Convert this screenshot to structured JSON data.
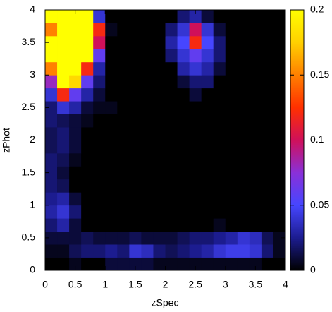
{
  "chart_data": {
    "type": "heatmap",
    "xlabel": "zSpec",
    "ylabel": "zPhot",
    "xbins": [
      0,
      0.2,
      0.4,
      0.6,
      0.8,
      1,
      1.2,
      1.4,
      1.6,
      1.8,
      2,
      2.2,
      2.4,
      2.6,
      2.8,
      3,
      3.2,
      3.4,
      3.6,
      3.8,
      4
    ],
    "ybins": [
      0,
      0.2,
      0.4,
      0.6,
      0.8,
      1,
      1.2,
      1.4,
      1.6,
      1.8,
      2,
      2.2,
      2.4,
      2.6,
      2.8,
      3,
      3.2,
      3.4,
      3.6,
      3.8,
      4
    ],
    "z": [
      [
        0,
        0,
        0.005,
        0,
        0,
        0.01,
        0.01,
        0.01,
        0.01,
        0.005,
        0.005,
        0.005,
        0.005,
        0.005,
        0.005,
        0.005,
        0.005,
        0.005,
        0,
        0
      ],
      [
        0.005,
        0.005,
        0.015,
        0.02,
        0.02,
        0.025,
        0.02,
        0.04,
        0.035,
        0.02,
        0.015,
        0.02,
        0.025,
        0.03,
        0.04,
        0.045,
        0.045,
        0.04,
        0.02,
        0.005
      ],
      [
        0.01,
        0.01,
        0.01,
        0.015,
        0.01,
        0.01,
        0.01,
        0.015,
        0.01,
        0.01,
        0.01,
        0.015,
        0.02,
        0.02,
        0.025,
        0.03,
        0.04,
        0.035,
        0.015,
        0.005
      ],
      [
        0.02,
        0.03,
        0.01,
        0,
        0,
        0,
        0,
        0,
        0,
        0,
        0,
        0,
        0,
        0,
        0.005,
        0,
        0,
        0,
        0,
        0
      ],
      [
        0.03,
        0.04,
        0.02,
        0,
        0,
        0,
        0,
        0,
        0,
        0,
        0,
        0,
        0,
        0,
        0,
        0,
        0,
        0,
        0,
        0
      ],
      [
        0.025,
        0.03,
        0.01,
        0,
        0,
        0,
        0,
        0,
        0,
        0,
        0,
        0,
        0,
        0,
        0,
        0,
        0,
        0,
        0,
        0
      ],
      [
        0.02,
        0.015,
        0,
        0,
        0,
        0,
        0,
        0,
        0,
        0,
        0,
        0,
        0,
        0,
        0,
        0,
        0,
        0,
        0,
        0
      ],
      [
        0.02,
        0.01,
        0,
        0,
        0,
        0,
        0,
        0,
        0,
        0,
        0,
        0,
        0,
        0,
        0,
        0,
        0,
        0,
        0,
        0
      ],
      [
        0.02,
        0.015,
        0.005,
        0,
        0,
        0,
        0,
        0,
        0,
        0,
        0,
        0,
        0,
        0,
        0,
        0,
        0,
        0,
        0,
        0
      ],
      [
        0.015,
        0.02,
        0.01,
        0,
        0,
        0,
        0,
        0,
        0,
        0,
        0,
        0,
        0,
        0,
        0,
        0,
        0,
        0,
        0,
        0
      ],
      [
        0.015,
        0.02,
        0.01,
        0,
        0,
        0,
        0,
        0,
        0,
        0,
        0,
        0,
        0,
        0,
        0,
        0,
        0,
        0,
        0,
        0
      ],
      [
        0.02,
        0.015,
        0.01,
        0.005,
        0,
        0,
        0,
        0,
        0,
        0,
        0,
        0,
        0,
        0,
        0,
        0,
        0,
        0,
        0,
        0
      ],
      [
        0.02,
        0.04,
        0.03,
        0.01,
        0.005,
        0.005,
        0,
        0,
        0,
        0,
        0,
        0,
        0,
        0,
        0,
        0,
        0,
        0,
        0,
        0
      ],
      [
        0.04,
        0.12,
        0.06,
        0.03,
        0.01,
        0,
        0,
        0,
        0,
        0,
        0,
        0,
        0.01,
        0,
        0,
        0,
        0,
        0,
        0,
        0
      ],
      [
        0.08,
        0.2,
        0.18,
        0.06,
        0.02,
        0,
        0,
        0,
        0,
        0,
        0,
        0.01,
        0.02,
        0.02,
        0,
        0,
        0,
        0,
        0,
        0
      ],
      [
        0.15,
        0.25,
        0.25,
        0.12,
        0.03,
        0,
        0,
        0,
        0,
        0,
        0,
        0.03,
        0.04,
        0.03,
        0.01,
        0,
        0,
        0,
        0,
        0
      ],
      [
        0.22,
        0.25,
        0.25,
        0.2,
        0.06,
        0,
        0,
        0,
        0,
        0,
        0.02,
        0.04,
        0.06,
        0.04,
        0.02,
        0,
        0,
        0,
        0,
        0
      ],
      [
        0.2,
        0.25,
        0.25,
        0.22,
        0.1,
        0,
        0,
        0,
        0,
        0,
        0.03,
        0.05,
        0.12,
        0.05,
        0.02,
        0,
        0,
        0,
        0,
        0
      ],
      [
        0.15,
        0.25,
        0.25,
        0.25,
        0.12,
        0.005,
        0,
        0,
        0,
        0,
        0.02,
        0.04,
        0.1,
        0.04,
        0.01,
        0,
        0,
        0,
        0,
        0
      ],
      [
        0.2,
        0.25,
        0.25,
        0.25,
        0.04,
        0,
        0,
        0,
        0,
        0,
        0,
        0.02,
        0.03,
        0.01,
        0,
        0,
        0,
        0,
        0,
        0
      ]
    ],
    "xlim": [
      0,
      4
    ],
    "xticks": [
      0,
      0.5,
      1,
      1.5,
      2,
      2.5,
      3,
      3.5,
      4
    ],
    "ylim": [
      0,
      4
    ],
    "yticks": [
      0,
      0.5,
      1,
      1.5,
      2,
      2.5,
      3,
      3.5,
      4
    ],
    "cblim": [
      0,
      0.2
    ],
    "cbticks": [
      0,
      0.05,
      0.1,
      0.15,
      0.2
    ],
    "colormap": [
      "#000000",
      "#1c1c90",
      "#4646ff",
      "#8a30d8",
      "#d0105a",
      "#ff3000",
      "#ff8000",
      "#ffd000",
      "#ffff00"
    ]
  }
}
